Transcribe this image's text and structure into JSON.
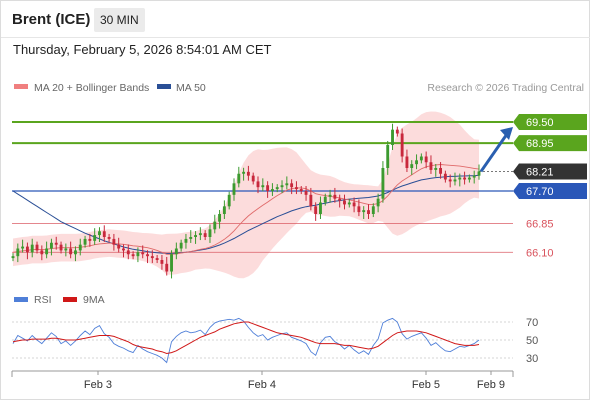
{
  "header": {
    "instrument": "Brent (ICE)",
    "timeframe": "30 MIN",
    "timestamp": "Thursday, February 5, 2026 8:54:01 AM CET"
  },
  "legend": {
    "items": [
      {
        "label": "MA 20 + Bollinger Bands",
        "color": "#f07f7f"
      },
      {
        "label": "MA 50",
        "color": "#2a4f96"
      }
    ],
    "credit": "Research © 2026 Trading Central"
  },
  "colors": {
    "resistance": "#5aa51e",
    "support": "#2a57b8",
    "minor_support": "#d9535d",
    "last_price": "#333333",
    "candle_up": "#3c9a2f",
    "candle_down": "#c8283c",
    "bollinger_fill": "#fbd6d6",
    "rsi": "#4f7fd8",
    "rsi_ma": "#d01818",
    "arrow": "#2a5fb0"
  },
  "chart_data": [
    {
      "type": "candlestick",
      "title": "Brent (ICE)",
      "timeframe": "30 MIN",
      "ylim": [
        65.3,
        70.1
      ],
      "x_ticks": [
        "Feb 3",
        "Feb 4",
        "Feb 5",
        "Feb 9"
      ],
      "levels": [
        {
          "value": 69.5,
          "label": "69.50",
          "kind": "resistance"
        },
        {
          "value": 68.95,
          "label": "68.95",
          "kind": "resistance"
        },
        {
          "value": 68.21,
          "label": "68.21",
          "kind": "last_price"
        },
        {
          "value": 67.7,
          "label": "67.70",
          "kind": "support"
        },
        {
          "value": 66.85,
          "label": "66.85",
          "kind": "minor_support"
        },
        {
          "value": 66.1,
          "label": "66.10",
          "kind": "minor_support"
        }
      ],
      "close": [
        66.0,
        66.2,
        66.25,
        66.1,
        66.3,
        66.15,
        66.05,
        66.2,
        66.35,
        66.3,
        66.15,
        66.2,
        66.05,
        66.15,
        66.3,
        66.45,
        66.4,
        66.55,
        66.65,
        66.5,
        66.45,
        66.3,
        66.2,
        66.15,
        66.05,
        66.0,
        66.1,
        66.05,
        66.0,
        65.95,
        65.9,
        65.8,
        65.6,
        66.05,
        66.2,
        66.35,
        66.45,
        66.5,
        66.55,
        66.6,
        66.5,
        66.7,
        66.9,
        67.1,
        67.3,
        67.6,
        67.9,
        68.15,
        68.2,
        68.1,
        67.95,
        67.8,
        67.85,
        67.7,
        67.75,
        67.8,
        67.85,
        67.9,
        67.8,
        67.75,
        67.7,
        67.6,
        67.3,
        67.1,
        67.4,
        67.55,
        67.6,
        67.5,
        67.45,
        67.35,
        67.4,
        67.3,
        67.15,
        67.2,
        67.1,
        67.3,
        67.5,
        68.3,
        68.9,
        69.3,
        69.2,
        68.6,
        68.3,
        68.4,
        68.5,
        68.6,
        68.45,
        68.25,
        68.3,
        68.15,
        68.0,
        67.95,
        68.0,
        68.05,
        68.0,
        68.05,
        68.1,
        68.21
      ],
      "ma20": [
        66.1,
        66.12,
        66.14,
        66.15,
        66.17,
        66.17,
        66.17,
        66.18,
        66.2,
        66.21,
        66.22,
        66.22,
        66.22,
        66.22,
        66.23,
        66.25,
        66.27,
        66.3,
        66.32,
        66.33,
        66.34,
        66.33,
        66.32,
        66.31,
        66.29,
        66.27,
        66.26,
        66.24,
        66.22,
        66.19,
        66.15,
        66.1,
        66.05,
        66.05,
        66.06,
        66.08,
        66.1,
        66.12,
        66.15,
        66.18,
        66.2,
        66.24,
        66.29,
        66.36,
        66.44,
        66.54,
        66.66,
        66.8,
        66.93,
        67.05,
        67.15,
        67.24,
        67.33,
        67.41,
        67.5,
        67.58,
        67.65,
        67.72,
        67.76,
        67.78,
        67.78,
        67.76,
        67.7,
        67.63,
        67.6,
        67.58,
        67.56,
        67.54,
        67.52,
        67.49,
        67.47,
        67.44,
        67.41,
        67.38,
        67.35,
        67.35,
        67.37,
        67.45,
        67.57,
        67.72,
        67.86,
        67.96,
        68.04,
        68.12,
        68.2,
        68.28,
        68.33,
        68.36,
        68.38,
        68.39,
        68.38,
        68.37,
        68.36,
        68.35,
        68.33,
        68.31,
        68.29,
        68.27
      ],
      "ma50": [
        67.7,
        67.62,
        67.54,
        67.46,
        67.38,
        67.3,
        67.22,
        67.14,
        67.06,
        66.98,
        66.9,
        66.84,
        66.78,
        66.72,
        66.66,
        66.6,
        66.55,
        66.5,
        66.45,
        66.4,
        66.36,
        66.32,
        66.28,
        66.24,
        66.21,
        66.18,
        66.16,
        66.14,
        66.12,
        66.1,
        66.09,
        66.08,
        66.07,
        66.07,
        66.08,
        66.09,
        66.1,
        66.12,
        66.14,
        66.16,
        66.18,
        66.21,
        66.25,
        66.29,
        66.34,
        66.4,
        66.46,
        66.53,
        66.6,
        66.67,
        66.73,
        66.79,
        66.85,
        66.91,
        66.97,
        67.03,
        67.08,
        67.13,
        67.18,
        67.22,
        67.26,
        67.29,
        67.31,
        67.33,
        67.36,
        67.38,
        67.41,
        67.43,
        67.45,
        67.47,
        67.49,
        67.5,
        67.51,
        67.52,
        67.53,
        67.55,
        67.57,
        67.61,
        67.66,
        67.72,
        67.78,
        67.83,
        67.87,
        67.91,
        67.95,
        67.99,
        68.01,
        68.03,
        68.05,
        68.06,
        68.07,
        68.08,
        68.08,
        68.09,
        68.09,
        68.1,
        68.1,
        68.11
      ]
    },
    {
      "type": "line",
      "title": "RSI",
      "series": [
        {
          "name": "RSI"
        },
        {
          "name": "9MA"
        }
      ],
      "ylim": [
        20,
        80
      ],
      "y_ticks": [
        30,
        50,
        70
      ],
      "grid": true,
      "rsi": [
        46,
        55,
        52,
        49,
        55,
        50,
        46,
        52,
        58,
        54,
        46,
        49,
        44,
        49,
        55,
        60,
        56,
        63,
        66,
        57,
        53,
        46,
        43,
        41,
        38,
        36,
        44,
        40,
        37,
        35,
        33,
        30,
        25,
        48,
        54,
        58,
        60,
        58,
        59,
        61,
        56,
        64,
        69,
        71,
        72,
        73,
        72,
        74,
        71,
        64,
        58,
        54,
        56,
        50,
        53,
        55,
        57,
        58,
        53,
        51,
        49,
        46,
        37,
        33,
        47,
        53,
        54,
        48,
        45,
        40,
        44,
        39,
        35,
        38,
        34,
        44,
        51,
        69,
        72,
        74,
        70,
        57,
        51,
        54,
        56,
        58,
        52,
        44,
        47,
        42,
        38,
        37,
        40,
        43,
        42,
        44,
        46,
        50
      ],
      "ma9": [
        48,
        49,
        50,
        50,
        51,
        51,
        51,
        51,
        52,
        52,
        51,
        50,
        50,
        50,
        51,
        52,
        53,
        54,
        55,
        55,
        55,
        54,
        52,
        50,
        48,
        45,
        43,
        42,
        41,
        40,
        38,
        37,
        35,
        36,
        38,
        41,
        44,
        47,
        50,
        53,
        55,
        57,
        59,
        62,
        64,
        66,
        68,
        69,
        70,
        70,
        68,
        66,
        64,
        62,
        60,
        58,
        57,
        56,
        55,
        54,
        53,
        51,
        49,
        47,
        46,
        46,
        46,
        46,
        45,
        44,
        44,
        43,
        42,
        41,
        40,
        41,
        43,
        47,
        51,
        55,
        58,
        59,
        60,
        60,
        60,
        59,
        58,
        56,
        54,
        52,
        50,
        48,
        46,
        45,
        44,
        44,
        44,
        45
      ]
    }
  ]
}
